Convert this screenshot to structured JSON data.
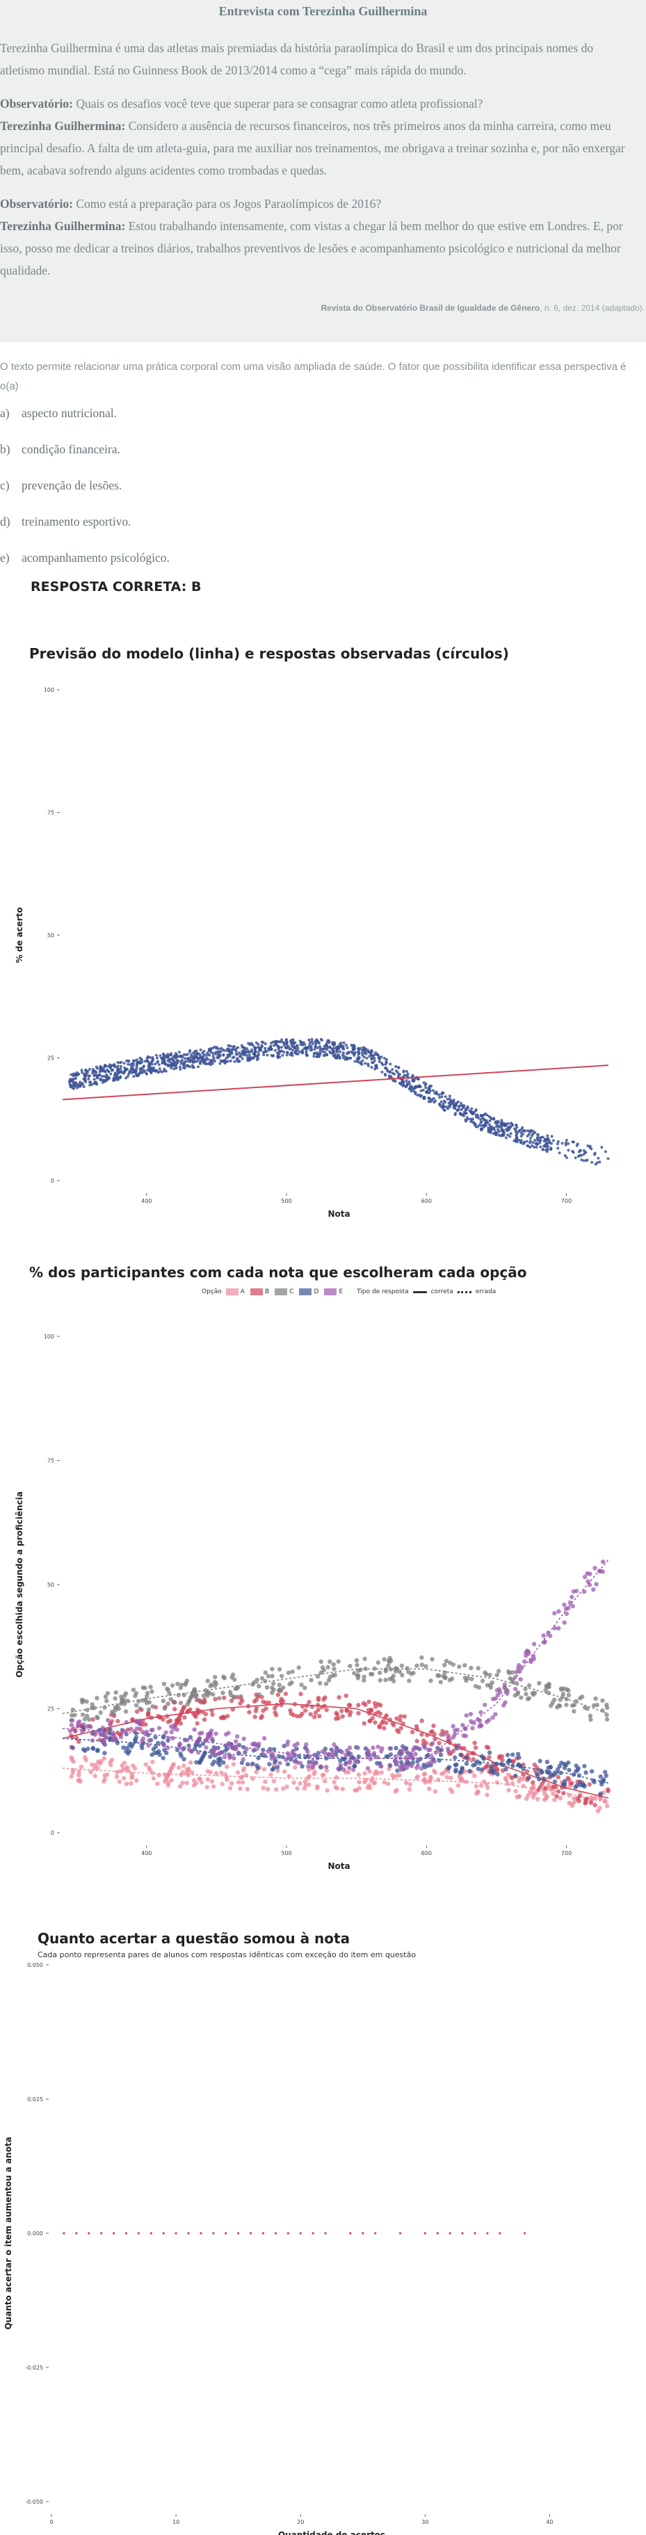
{
  "interview": {
    "title": "Entrevista com Terezinha Guilhermina",
    "intro": "Terezinha Guilhermina é uma das atletas mais premiadas da história paraolímpica do Brasil e um dos principais nomes do atletismo mundial. Está no Guinness Book de 2013/2014 como a “cega” mais rápida do mundo.",
    "qa": [
      {
        "q_label": "Observatório:",
        "q_text": "Quais os desafios você teve que superar para se consagrar como atleta profissional?",
        "a_label": "Terezinha Guilhermina:",
        "a_text": "Considero a ausência de recursos financeiros, nos três primeiros anos da minha carreira, como meu principal desafio. A falta de um atleta-guia, para me auxiliar nos treinamentos, me obrigava a treinar sozinha e, por não enxergar bem, acabava sofrendo alguns acidentes como trombadas e quedas."
      },
      {
        "q_label": "Observatório:",
        "q_text": "Como está a preparação para os Jogos Paraolímpicos de 2016?",
        "a_label": "Terezinha Guilhermina:",
        "a_text": "Estou trabalhando intensamente, com vistas a chegar lá bem melhor do que estive em Londres. E, por isso, posso me dedicar a treinos diários, trabalhos preventivos de lesões e acompanhamento psicológico e nutricional da melhor qualidade."
      }
    ],
    "source_bold": "Revista do Observatório Brasil de Igualdade de Gênero",
    "source_rest": ", n. 6, dez. 2014 (adaptado)."
  },
  "question": {
    "prompt": "O texto permite relacionar uma prática corporal com uma visão ampliada de saúde. O fator que possibilita identificar essa perspectiva é o(a)",
    "options": [
      {
        "letter": "a)",
        "text": "aspecto nutricional."
      },
      {
        "letter": "b)",
        "text": "condição financeira."
      },
      {
        "letter": "c)",
        "text": "prevenção de lesões."
      },
      {
        "letter": "d)",
        "text": "treinamento esportivo."
      },
      {
        "letter": "e)",
        "text": "acompanhamento psicológico."
      }
    ],
    "answer": "RESPOSTA CORRETA: B"
  },
  "chart_data": [
    {
      "type": "scatter",
      "title": "Previsão do modelo (linha) e respostas observadas (círculos)",
      "xlabel": "Nota",
      "ylabel": "% de acerto",
      "x_ticks": [
        "400",
        "500",
        "600",
        "700"
      ],
      "y_ticks": [
        "0",
        "25",
        "50",
        "75",
        "100"
      ],
      "xlim": [
        340,
        735
      ],
      "ylim": [
        0,
        100
      ],
      "point_color": "#3e5597",
      "line_color": "#d0455a",
      "model_line": {
        "x": [
          340,
          730
        ],
        "y": [
          16.5,
          23.5
        ]
      },
      "observed_trend": {
        "x": [
          340,
          400,
          450,
          500,
          530,
          560,
          600,
          640,
          680,
          720
        ],
        "y": [
          20,
          23.5,
          25.5,
          27,
          27,
          25,
          18,
          12,
          8,
          5
        ]
      },
      "grid": false,
      "legend": "none"
    },
    {
      "type": "scatter",
      "title": "% dos participantes com cada nota que escolheram cada opção",
      "xlabel": "Nota",
      "ylabel": "Opção escolhida segundo a proficiência",
      "x_ticks": [
        "400",
        "500",
        "600",
        "700"
      ],
      "y_ticks": [
        "0",
        "25",
        "50",
        "75",
        "100"
      ],
      "xlim": [
        340,
        735
      ],
      "ylim": [
        0,
        100
      ],
      "legend": "top",
      "legend_option_title": "Opção",
      "legend_type_title": "Tipo de resposta",
      "legend_types": [
        "correta",
        "errada"
      ],
      "series": [
        {
          "name": "A",
          "color": "#f0899a",
          "x": [
            340,
            400,
            450,
            500,
            550,
            600,
            650,
            700,
            730
          ],
          "y": [
            13,
            12,
            11.5,
            11,
            11,
            10.5,
            10,
            8,
            6
          ]
        },
        {
          "name": "B",
          "color": "#d0455a",
          "x": [
            340,
            400,
            450,
            500,
            550,
            600,
            650,
            700,
            730
          ],
          "y": [
            19,
            23,
            25,
            26,
            25,
            20,
            14,
            9,
            7
          ]
        },
        {
          "name": "C",
          "color": "#7f7f7f",
          "x": [
            340,
            400,
            450,
            500,
            550,
            600,
            650,
            700,
            730
          ],
          "y": [
            24,
            27,
            29,
            31,
            33,
            33,
            31,
            27,
            24
          ]
        },
        {
          "name": "D",
          "color": "#3e5597",
          "x": [
            340,
            400,
            450,
            500,
            550,
            600,
            650,
            700,
            730
          ],
          "y": [
            19,
            18,
            16,
            15,
            15,
            15,
            14,
            12,
            10
          ]
        },
        {
          "name": "E",
          "color": "#9b5bb0",
          "x": [
            340,
            400,
            450,
            500,
            550,
            600,
            650,
            700,
            730
          ],
          "y": [
            21,
            20,
            18,
            16,
            15,
            15,
            26,
            45,
            55
          ]
        }
      ]
    },
    {
      "type": "scatter",
      "title": "Quanto acertar a questão somou à nota",
      "subtitle": "Cada ponto representa pares de alunos com respostas idênticas com exceção do item em questão",
      "xlabel": "Quantidade de acertos",
      "ylabel": "Quanto acertar o item aumentou a anota",
      "x_ticks": [
        "0",
        "10",
        "20",
        "30",
        "40"
      ],
      "y_ticks": [
        "-0.050",
        "-0.025",
        "0.000",
        "0.025",
        "0.050"
      ],
      "xlim": [
        0,
        45
      ],
      "ylim": [
        -0.05,
        0.05
      ],
      "point_color": "#d0455a",
      "x": [
        1,
        2,
        3,
        4,
        5,
        6,
        7,
        8,
        9,
        10,
        11,
        12,
        13,
        14,
        15,
        16,
        17,
        18,
        19,
        20,
        21,
        22,
        24,
        25,
        26,
        28,
        30,
        31,
        32,
        33,
        34,
        35,
        36,
        38
      ],
      "y": [
        0,
        0,
        0,
        0,
        0,
        0,
        0,
        0,
        0,
        0,
        0,
        0,
        0,
        0,
        0,
        0,
        0,
        0,
        0,
        0,
        0,
        0,
        0,
        0,
        0,
        0,
        0,
        0,
        0,
        0,
        0,
        0,
        0,
        0
      ],
      "grid": false,
      "legend": "none"
    }
  ]
}
